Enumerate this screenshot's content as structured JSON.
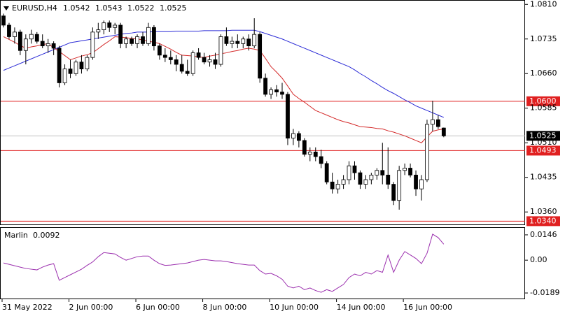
{
  "chart_data": [
    {
      "type": "candlestick",
      "title": "EURUSD,H4",
      "categories": [
        "31 May 2022",
        null,
        null,
        null,
        null,
        null,
        null,
        null,
        null,
        null,
        null,
        null,
        "2 Jun 00:00",
        null,
        null,
        null,
        null,
        null,
        null,
        null,
        null,
        null,
        null,
        null,
        "6 Jun 00:00",
        null,
        null,
        null,
        null,
        null,
        null,
        null,
        null,
        null,
        null,
        null,
        "8 Jun 00:00",
        null,
        null,
        null,
        null,
        null,
        null,
        null,
        null,
        null,
        null,
        null,
        "10 Jun 00:00",
        null,
        null,
        null,
        null,
        null,
        null,
        null,
        null,
        null,
        null,
        null,
        "14 Jun 00:00",
        null,
        null,
        null,
        null,
        null,
        null,
        null,
        null,
        null,
        null,
        null,
        "16 Jun 00:00",
        null,
        null,
        null,
        null,
        null,
        null,
        null
      ],
      "open": [
        1.0785,
        1.0765,
        1.074,
        1.075,
        1.071,
        1.0735,
        1.0745,
        1.073,
        1.072,
        1.0725,
        1.0715,
        1.064,
        1.067,
        1.066,
        1.0685,
        1.067,
        1.0695,
        1.075,
        1.0755,
        1.077,
        1.076,
        1.0765,
        1.0725,
        1.0735,
        1.0725,
        1.074,
        1.0725,
        1.076,
        1.072,
        1.07,
        1.0695,
        1.069,
        1.068,
        1.0665,
        1.066,
        1.0705,
        1.0695,
        1.0685,
        1.069,
        1.068,
        1.074,
        1.0725,
        1.073,
        1.0725,
        1.0735,
        1.072,
        1.0745,
        1.065,
        1.0615,
        1.0625,
        1.062,
        1.0615,
        1.052,
        1.053,
        1.0515,
        1.0485,
        1.049,
        1.048,
        1.0465,
        1.0425,
        1.041,
        1.042,
        1.043,
        1.046,
        1.0445,
        1.042,
        1.043,
        1.044,
        1.045,
        1.044,
        1.042,
        1.0385,
        1.045,
        1.0455,
        1.044,
        1.041,
        1.043,
        1.055,
        1.056,
        1.0542
      ],
      "high": [
        1.079,
        1.077,
        1.076,
        1.0755,
        1.0745,
        1.0755,
        1.075,
        1.0745,
        1.0735,
        1.073,
        1.072,
        1.068,
        1.069,
        1.069,
        1.07,
        1.07,
        1.076,
        1.077,
        1.0775,
        1.0775,
        1.077,
        1.077,
        1.074,
        1.074,
        1.0745,
        1.075,
        1.077,
        1.0765,
        1.0725,
        1.0715,
        1.071,
        1.07,
        1.07,
        1.069,
        1.071,
        1.0715,
        1.0705,
        1.07,
        1.0705,
        1.0745,
        1.076,
        1.074,
        1.0745,
        1.074,
        1.0745,
        1.078,
        1.075,
        1.066,
        1.063,
        1.0635,
        1.064,
        1.062,
        1.054,
        1.0535,
        1.052,
        1.05,
        1.05,
        1.0495,
        1.047,
        1.0445,
        1.043,
        1.044,
        1.047,
        1.047,
        1.045,
        1.044,
        1.0445,
        1.0455,
        1.051,
        1.05,
        1.0425,
        1.046,
        1.0465,
        1.0465,
        1.045,
        1.044,
        1.056,
        1.0601,
        1.057,
        1.0543
      ],
      "low": [
        1.076,
        1.0735,
        1.0725,
        1.07,
        1.068,
        1.0725,
        1.0725,
        1.0715,
        1.0705,
        1.07,
        1.063,
        1.0635,
        1.065,
        1.0655,
        1.066,
        1.0665,
        1.069,
        1.0735,
        1.0745,
        1.075,
        1.0745,
        1.0715,
        1.0715,
        1.072,
        1.0715,
        1.072,
        1.072,
        1.071,
        1.069,
        1.0685,
        1.068,
        1.0665,
        1.066,
        1.0655,
        1.0655,
        1.069,
        1.068,
        1.0675,
        1.067,
        1.0675,
        1.072,
        1.0715,
        1.0715,
        1.0715,
        1.071,
        1.0715,
        1.064,
        1.061,
        1.0605,
        1.061,
        1.0605,
        1.0505,
        1.0505,
        1.05,
        1.048,
        1.047,
        1.047,
        1.0455,
        1.042,
        1.04,
        1.04,
        1.041,
        1.042,
        1.043,
        1.041,
        1.041,
        1.042,
        1.043,
        1.042,
        1.041,
        1.0375,
        1.0365,
        1.044,
        1.0435,
        1.0395,
        1.0385,
        1.0425,
        1.0535,
        1.054,
        1.0522
      ],
      "close": [
        1.0765,
        1.074,
        1.075,
        1.071,
        1.0735,
        1.0745,
        1.073,
        1.072,
        1.0725,
        1.0715,
        1.064,
        1.067,
        1.066,
        1.0685,
        1.067,
        1.0695,
        1.075,
        1.0755,
        1.077,
        1.076,
        1.0765,
        1.0725,
        1.0735,
        1.0725,
        1.074,
        1.0725,
        1.076,
        1.072,
        1.07,
        1.0695,
        1.069,
        1.068,
        1.0665,
        1.066,
        1.0705,
        1.0695,
        1.0685,
        1.069,
        1.068,
        1.074,
        1.0725,
        1.073,
        1.0725,
        1.0735,
        1.072,
        1.0745,
        1.065,
        1.0615,
        1.0625,
        1.062,
        1.0615,
        1.052,
        1.053,
        1.0515,
        1.0485,
        1.049,
        1.048,
        1.0465,
        1.0425,
        1.041,
        1.042,
        1.043,
        1.046,
        1.0445,
        1.042,
        1.043,
        1.044,
        1.045,
        1.044,
        1.042,
        1.0385,
        1.045,
        1.0455,
        1.044,
        1.041,
        1.043,
        1.055,
        1.056,
        1.0545,
        1.0525
      ],
      "series": [
        {
          "color": "#2b2bd6",
          "values": [
            1.0667,
            1.0672,
            1.0677,
            1.0682,
            1.0687,
            1.0692,
            1.0697,
            1.0702,
            1.0707,
            1.0712,
            1.0717,
            1.0722,
            1.0727,
            1.0729,
            1.0731,
            1.0733,
            1.0735,
            1.0737,
            1.0739,
            1.0741,
            1.0743,
            1.0745,
            1.0747,
            1.0748,
            1.075,
            1.075,
            1.075,
            1.0751,
            1.0751,
            1.0751,
            1.0751,
            1.0752,
            1.0752,
            1.0752,
            1.0752,
            1.0752,
            1.0753,
            1.0753,
            1.0753,
            1.0753,
            1.0753,
            1.0754,
            1.0754,
            1.0754,
            1.0754,
            1.0754,
            1.0751,
            1.0747,
            1.0743,
            1.0739,
            1.0735,
            1.073,
            1.0725,
            1.072,
            1.0715,
            1.071,
            1.0705,
            1.07,
            1.0695,
            1.069,
            1.0685,
            1.068,
            1.0675,
            1.0668,
            1.066,
            1.0653,
            1.0645,
            1.0638,
            1.063,
            1.0623,
            1.0617,
            1.061,
            1.0603,
            1.0597,
            1.059,
            1.0585,
            1.058,
            1.0575,
            1.057,
            1.0565
          ]
        },
        {
          "color": "#d42a2a",
          "values": [
            1.074,
            1.0734,
            1.0728,
            1.0721,
            1.0715,
            1.0718,
            1.072,
            1.0723,
            1.0725,
            1.0716,
            1.0708,
            1.0699,
            1.069,
            1.0694,
            1.0698,
            1.0701,
            1.0705,
            1.0714,
            1.0723,
            1.0731,
            1.074,
            1.0739,
            1.0738,
            1.0736,
            1.0735,
            1.0733,
            1.073,
            1.0728,
            1.0725,
            1.0719,
            1.0713,
            1.0706,
            1.07,
            1.0699,
            1.0698,
            1.0696,
            1.0695,
            1.0698,
            1.07,
            1.0703,
            1.0705,
            1.0708,
            1.071,
            1.0713,
            1.0715,
            1.0713,
            1.071,
            1.0693,
            1.0675,
            1.0663,
            1.065,
            1.0633,
            1.0615,
            1.0606,
            1.0598,
            1.0589,
            1.058,
            1.0575,
            1.057,
            1.0565,
            1.056,
            1.0556,
            1.0553,
            1.0549,
            1.0545,
            1.0544,
            1.0543,
            1.0541,
            1.054,
            1.0536,
            1.0533,
            1.0529,
            1.0525,
            1.052,
            1.0515,
            1.051,
            1.0523,
            1.0535,
            1.0538,
            1.054
          ]
        }
      ],
      "levels": [
        {
          "value": 1.06,
          "label": "1.0600"
        },
        {
          "value": 1.0493,
          "label": "1.0493"
        },
        {
          "value": 1.034,
          "label": "1.0340"
        }
      ],
      "ylim": [
        1.0333,
        1.0818
      ],
      "yticks": [
        {
          "value": 1.081,
          "label": "1.0810"
        },
        1.0735,
        {
          "value": 1.066,
          "label": "1.0660"
        },
        1.0585,
        {
          "value": 1.051,
          "label": "1.0510"
        },
        1.0435,
        {
          "value": 1.036,
          "label": "1.0360"
        }
      ]
    },
    {
      "type": "line",
      "title": "Marlin",
      "color": "#9b2fae",
      "values": [
        -0.0016,
        -0.0024,
        -0.0032,
        -0.004,
        -0.0048,
        -0.0052,
        -0.0056,
        -0.004,
        -0.0028,
        -0.002,
        -0.0116,
        -0.01,
        -0.0084,
        -0.0068,
        -0.0052,
        -0.003,
        -0.001,
        0.002,
        0.0044,
        0.004,
        0.0036,
        0.0016,
        0.0,
        0.001,
        0.002,
        0.0024,
        0.0024,
        0.0,
        -0.002,
        -0.003,
        -0.0028,
        -0.0024,
        -0.002,
        -0.0016,
        -0.0008,
        0.0,
        0.0004,
        0.0,
        -0.0004,
        -0.0004,
        -0.0008,
        -0.0014,
        -0.002,
        -0.0024,
        -0.0028,
        -0.0028,
        -0.006,
        -0.008,
        -0.0076,
        -0.009,
        -0.011,
        -0.015,
        -0.016,
        -0.015,
        -0.017,
        -0.016,
        -0.0175,
        -0.0185,
        -0.017,
        -0.018,
        -0.016,
        -0.014,
        -0.01,
        -0.008,
        -0.009,
        -0.007,
        -0.008,
        -0.006,
        -0.007,
        0.003,
        -0.007,
        0.0,
        0.005,
        0.003,
        0.001,
        -0.002,
        0.004,
        0.015,
        0.013,
        0.0092
      ],
      "ylim": [
        -0.0221,
        0.0186
      ],
      "yticks": [
        0.0146,
        {
          "value": 0,
          "label": "0.00"
        },
        -0.0189
      ]
    }
  ]
}
